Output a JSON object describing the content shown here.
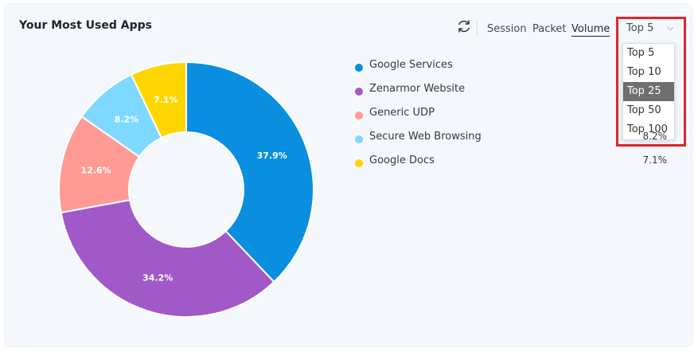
{
  "header": {
    "title": "Your Most Used Apps",
    "options": [
      "Session",
      "Packet",
      "Volume"
    ],
    "active_option": "Volume"
  },
  "dropdown": {
    "selected": "Top 5",
    "options": [
      "Top 5",
      "Top 10",
      "Top 25",
      "Top 50",
      "Top 100"
    ],
    "highlighted": "Top 25"
  },
  "legend": [
    {
      "label": "Google Services",
      "value": "",
      "color": "#0a8ee0"
    },
    {
      "label": "Zenarmor Website",
      "value": "",
      "color": "#a259c8"
    },
    {
      "label": "Generic UDP",
      "value": "",
      "color": "#ff9a95"
    },
    {
      "label": "Secure Web Browsing",
      "value": "8.2%",
      "color": "#7ed8ff"
    },
    {
      "label": "Google Docs",
      "value": "7.1%",
      "color": "#ffd500"
    }
  ],
  "chart_data": {
    "type": "pie",
    "donut": true,
    "slices": [
      {
        "label": "Google Services",
        "value": 37.9,
        "text": "37.9%",
        "color": "#0a8ee0"
      },
      {
        "label": "Zenarmor Website",
        "value": 34.2,
        "text": "34.2%",
        "color": "#a259c8"
      },
      {
        "label": "Generic UDP",
        "value": 12.6,
        "text": "12.6%",
        "color": "#ff9a95"
      },
      {
        "label": "Secure Web Browsing",
        "value": 8.2,
        "text": "8.2%",
        "color": "#7ed8ff"
      },
      {
        "label": "Google Docs",
        "value": 7.1,
        "text": "7.1%",
        "color": "#ffd500"
      }
    ]
  }
}
